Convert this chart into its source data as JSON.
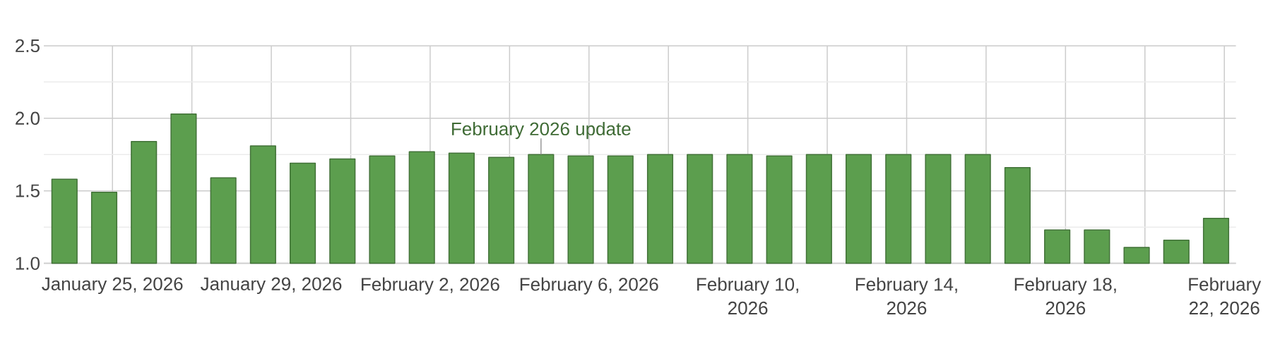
{
  "chart_data": {
    "type": "bar",
    "x": [
      "2026-01-23T19:00",
      "2026-01-24T19:00",
      "2026-01-25T19:00",
      "2026-01-26T19:00",
      "2026-01-27T19:00",
      "2026-01-28T19:00",
      "2026-01-29T19:00",
      "2026-01-30T19:00",
      "2026-01-31T19:00",
      "2026-02-01T19:00",
      "2026-02-02T19:00",
      "2026-02-03T19:00",
      "2026-02-04T19:00",
      "2026-02-05T19:00",
      "2026-02-06T19:00",
      "2026-02-07T19:00",
      "2026-02-08T19:00",
      "2026-02-09T19:00",
      "2026-02-10T19:00",
      "2026-02-11T19:00",
      "2026-02-12T19:00",
      "2026-02-13T19:00",
      "2026-02-14T19:00",
      "2026-02-15T19:00",
      "2026-02-16T19:00",
      "2026-02-17T19:00",
      "2026-02-18T19:00",
      "2026-02-19T19:00",
      "2026-02-20T19:00",
      "2026-02-21T19:00"
    ],
    "values": [
      1.58,
      1.49,
      1.84,
      2.03,
      1.59,
      1.81,
      1.69,
      1.72,
      1.74,
      1.77,
      1.76,
      1.73,
      1.75,
      1.74,
      1.74,
      1.75,
      1.75,
      1.75,
      1.74,
      1.75,
      1.75,
      1.75,
      1.75,
      1.75,
      1.66,
      1.23,
      1.23,
      1.11,
      1.16,
      1.31
    ],
    "color": "#5c9e4e",
    "xlim": [
      "2026-01-23T06:30",
      "2026-02-22T07:00"
    ],
    "xticks": [
      {
        "value": "2026-01-25",
        "label": "January 25, 2026"
      },
      {
        "value": "2026-01-27",
        "label": null
      },
      {
        "value": "2026-01-29",
        "label": "January 29, 2026"
      },
      {
        "value": "2026-01-31",
        "label": null
      },
      {
        "value": "2026-02-02",
        "label": "February 2, 2026"
      },
      {
        "value": "2026-02-04",
        "label": null
      },
      {
        "value": "2026-02-06",
        "label": "February 6, 2026"
      },
      {
        "value": "2026-02-08",
        "label": null
      },
      {
        "value": "2026-02-10",
        "label": "February 10, 2026"
      },
      {
        "value": "2026-02-12",
        "label": null
      },
      {
        "value": "2026-02-14",
        "label": "February 14, 2026"
      },
      {
        "value": "2026-02-16",
        "label": null
      },
      {
        "value": "2026-02-18",
        "label": "February 18, 2026"
      },
      {
        "value": "2026-02-20",
        "label": null
      },
      {
        "value": "2026-02-22",
        "label": "February 22, 2026"
      }
    ],
    "ylim": [
      1,
      2.5
    ],
    "yticks": [
      {
        "value": 1,
        "label": "1.0"
      },
      {
        "value": 1.25,
        "label": null
      },
      {
        "value": 1.5,
        "label": "1.5"
      },
      {
        "value": 1.75,
        "label": null
      },
      {
        "value": 2,
        "label": "2.0"
      },
      {
        "value": 2.25,
        "label": null
      },
      {
        "value": 2.5,
        "label": "2.5"
      }
    ],
    "grid": true,
    "annotations": [
      {
        "text": "February 2026 update",
        "x": "2026-02-04T19:00",
        "y": 1.75
      }
    ]
  }
}
